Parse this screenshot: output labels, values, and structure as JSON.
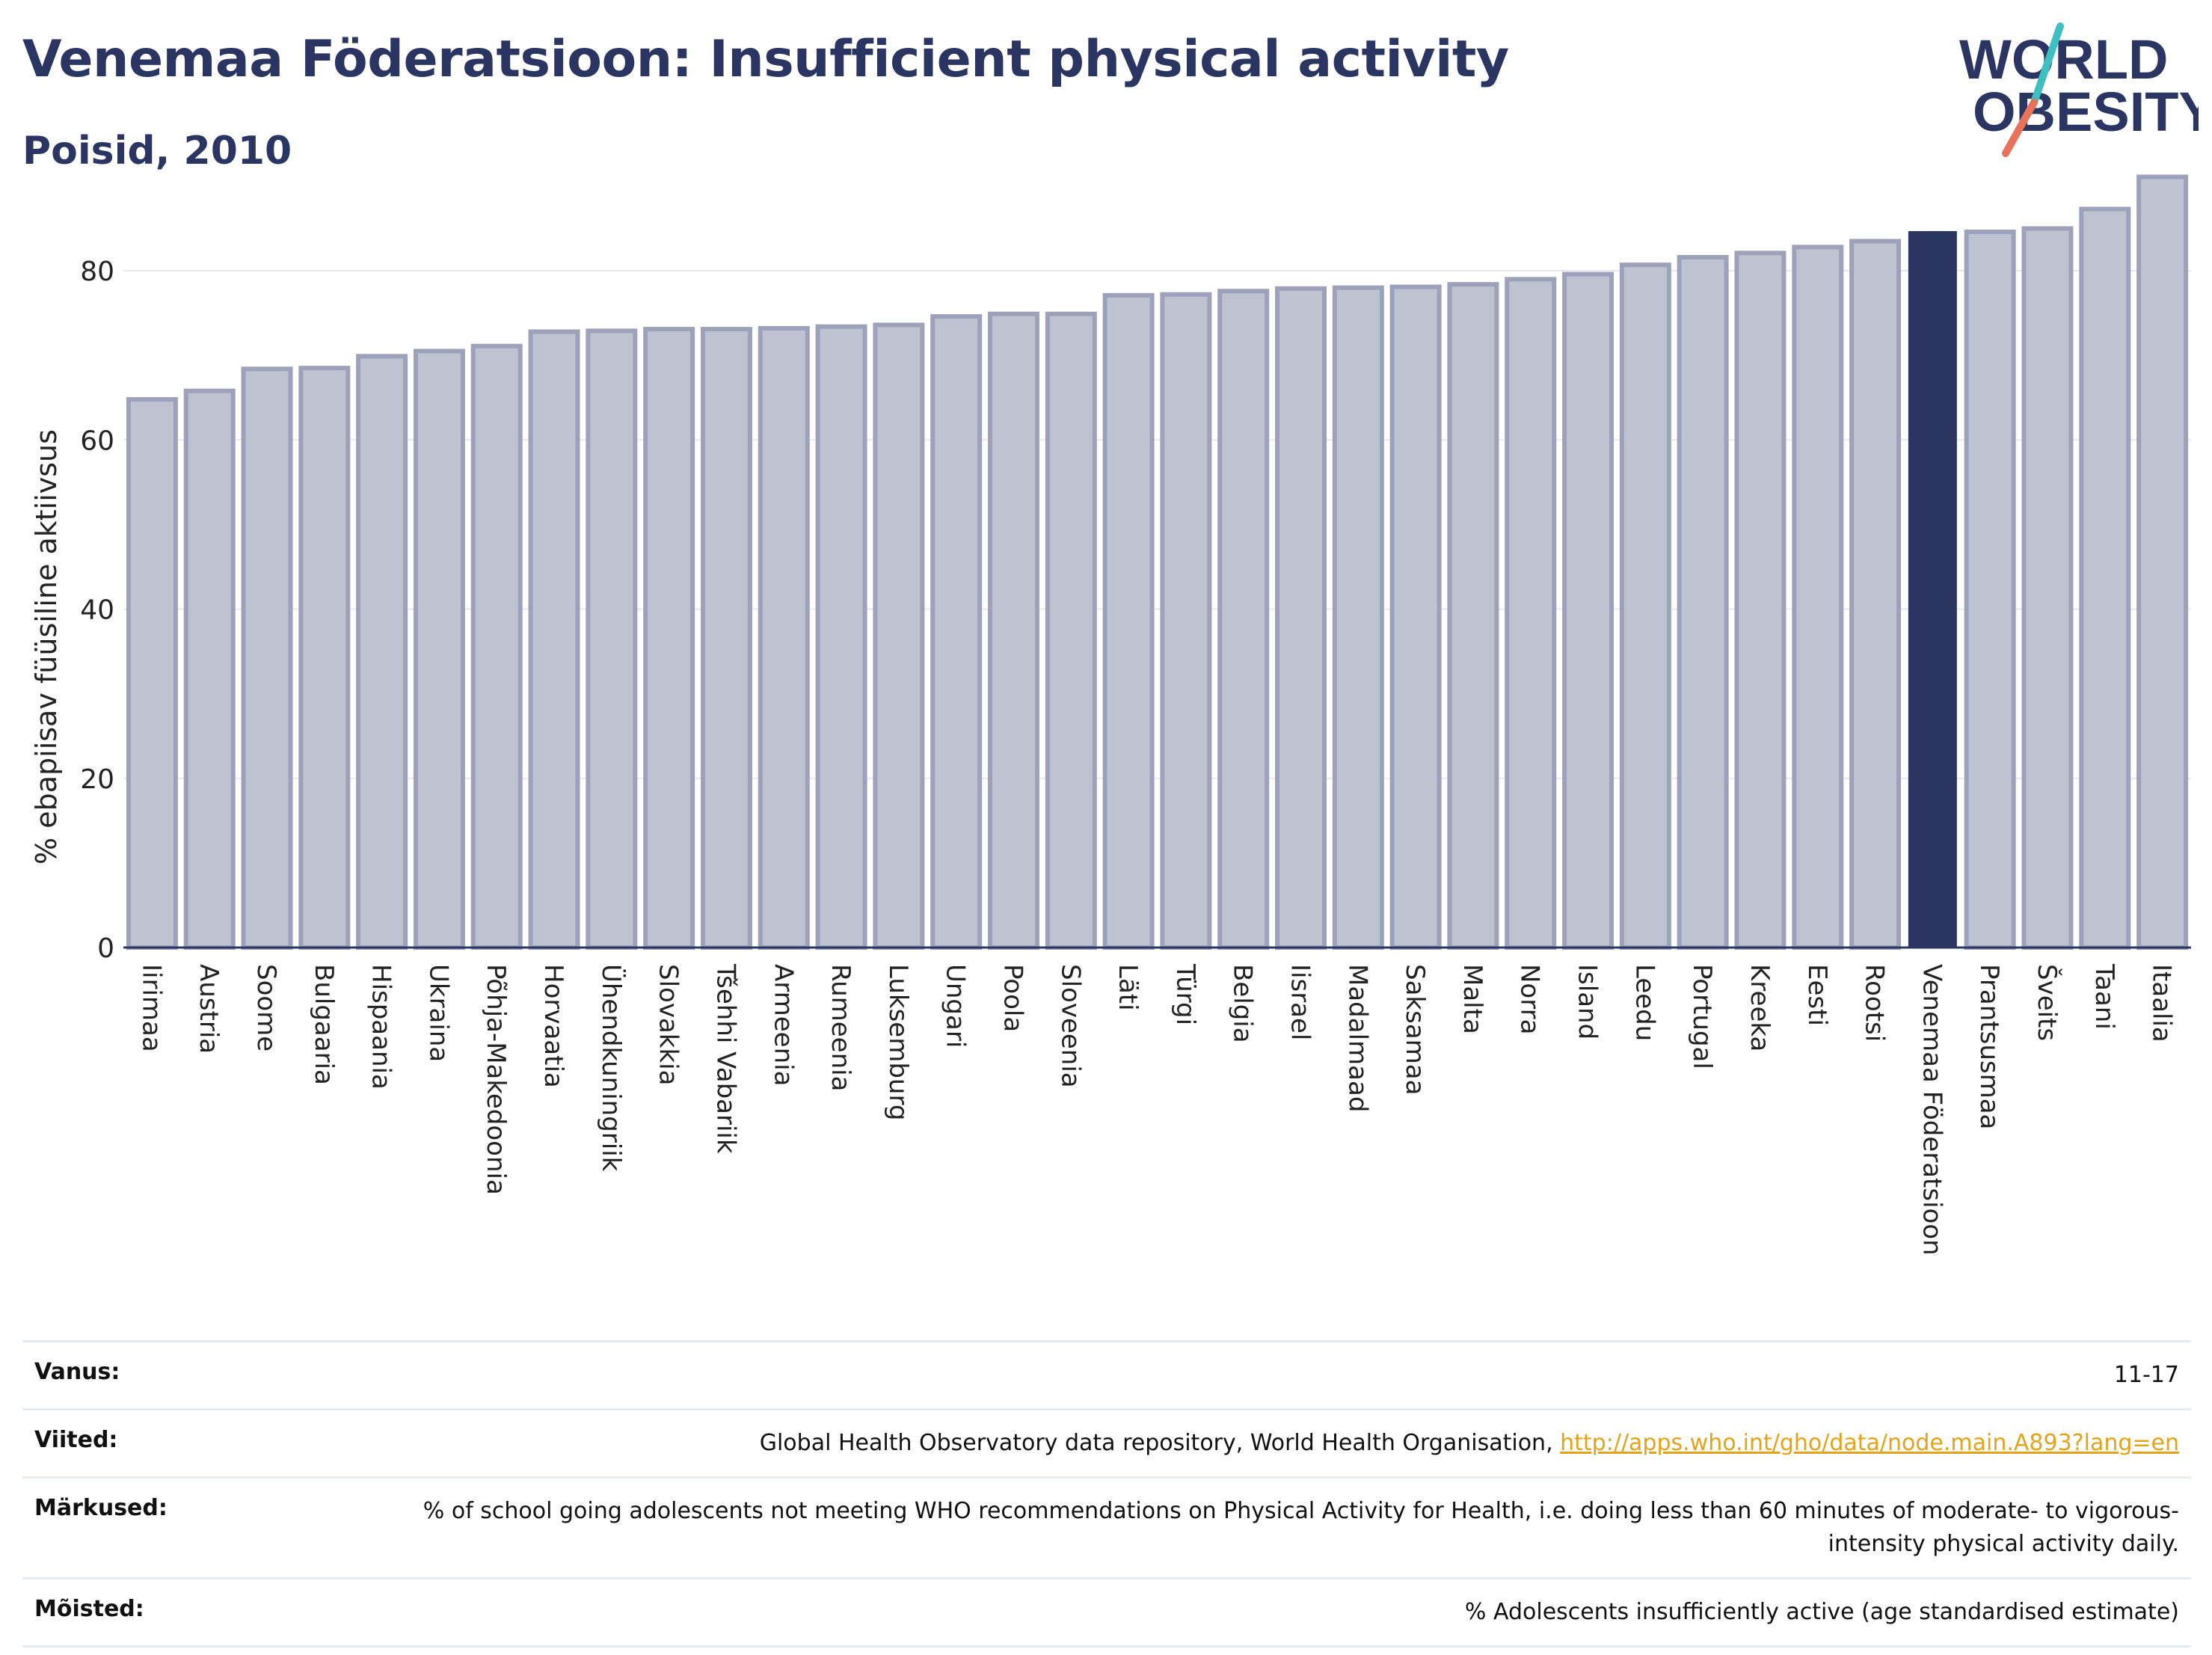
{
  "header": {
    "title": "Venemaa Föderatsioon: Insufficient physical activity",
    "subtitle": "Poisid, 2010"
  },
  "logo": {
    "line1": "WORLD",
    "line2": "OBESITY",
    "colors": {
      "text": "#2b3562",
      "slash_teal": "#3fbfbf",
      "slash_red": "#e8735a"
    }
  },
  "chart_data": {
    "type": "bar",
    "ylabel": "% ebapiisav füüsiline aktiivsus",
    "xlabel": "",
    "ylim": [
      0,
      93
    ],
    "yticks": [
      0,
      20,
      40,
      60,
      80
    ],
    "grid": true,
    "highlight_category": "Venemaa Föderatsioon",
    "colors": {
      "bar": "#bfc2d0",
      "bar_border": "#9da2ba",
      "highlight": "#2b3562",
      "grid": "#e6e8ee",
      "axis": "#2b3562"
    },
    "categories": [
      "Iirimaa",
      "Austria",
      "Soome",
      "Bulgaaria",
      "Hispaania",
      "Ukraina",
      "Põhja-Makedoonia",
      "Horvaatia",
      "Ühendkuningriik",
      "Slovakkia",
      "Tšehhi Vabariik",
      "Armeenia",
      "Rumeenia",
      "Luksemburg",
      "Ungari",
      "Poola",
      "Sloveenia",
      "Läti",
      "Türgi",
      "Belgia",
      "Iisrael",
      "Madalmaad",
      "Saksamaa",
      "Malta",
      "Norra",
      "Island",
      "Leedu",
      "Portugal",
      "Kreeka",
      "Eesti",
      "Rootsi",
      "Venemaa Föderatsioon",
      "Prantsusmaa",
      "Šveits",
      "Taani",
      "Itaalia"
    ],
    "values": [
      64.8,
      65.8,
      68.4,
      68.5,
      69.9,
      70.5,
      71.1,
      72.8,
      72.9,
      73.1,
      73.1,
      73.2,
      73.4,
      73.6,
      74.6,
      74.9,
      74.9,
      77.1,
      77.2,
      77.6,
      77.9,
      78.0,
      78.1,
      78.4,
      79.0,
      79.6,
      80.7,
      81.6,
      82.1,
      82.8,
      83.5,
      84.6,
      84.6,
      85.0,
      87.3,
      91.1
    ]
  },
  "info": {
    "rows": [
      {
        "label": "Vanus:",
        "value": "11-17"
      },
      {
        "label": "Viited:",
        "value": "Global Health Observatory data repository, World Health Organisation, ",
        "link": "http://apps.who.int/gho/data/node.main.A893?lang=en"
      },
      {
        "label": "Märkused:",
        "value": "% of school going adolescents not meeting WHO recommendations on Physical Activity for Health, i.e. doing less than 60 minutes of moderate- to vigorous-intensity physical activity daily."
      },
      {
        "label": "Mõisted:",
        "value": "% Adolescents insufficiently active (age standardised estimate)"
      }
    ]
  }
}
